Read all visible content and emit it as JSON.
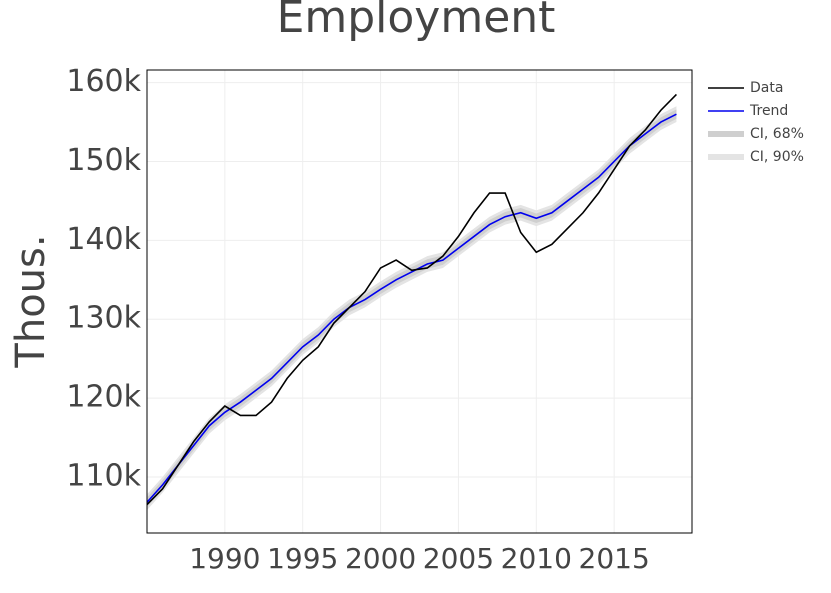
{
  "chart_data": {
    "type": "line",
    "title": "Employment",
    "y_label": "Thous.",
    "x": [
      1985,
      1986,
      1987,
      1988,
      1989,
      1990,
      1991,
      1992,
      1993,
      1994,
      1995,
      1996,
      1997,
      1998,
      1999,
      2000,
      2001,
      2002,
      2003,
      2004,
      2005,
      2006,
      2007,
      2008,
      2009,
      2010,
      2011,
      2012,
      2013,
      2014,
      2015,
      2016,
      2017,
      2018,
      2019
    ],
    "series": [
      {
        "name": "Data",
        "color": "#000000",
        "values": [
          106500,
          108500,
          111500,
          114500,
          117000,
          119000,
          117800,
          117800,
          119500,
          122500,
          124800,
          126500,
          129500,
          131500,
          133500,
          136500,
          137500,
          136200,
          136500,
          138000,
          140500,
          143500,
          146000,
          146000,
          141000,
          138500,
          139500,
          141500,
          143500,
          146000,
          149000,
          152000,
          154000,
          156500,
          158500
        ]
      },
      {
        "name": "Trend",
        "color": "#0000ee",
        "values": [
          106800,
          109000,
          111500,
          114000,
          116500,
          118200,
          119500,
          121000,
          122500,
          124500,
          126500,
          128000,
          130000,
          131500,
          132500,
          133800,
          135000,
          136000,
          137000,
          137500,
          139000,
          140500,
          142000,
          143000,
          143500,
          142800,
          143500,
          145000,
          146500,
          148000,
          150000,
          152000,
          153500,
          155000,
          156000
        ]
      },
      {
        "name": "CI, 68%",
        "color": "#cfcfcf",
        "lower": [
          106200,
          108400,
          110900,
          113400,
          115900,
          117600,
          118900,
          120400,
          121900,
          123900,
          125900,
          127400,
          129400,
          130900,
          131900,
          133200,
          134400,
          135400,
          136400,
          136900,
          138400,
          139900,
          141400,
          142400,
          142900,
          142200,
          142900,
          144400,
          145900,
          147400,
          149400,
          151400,
          152900,
          154400,
          155400
        ],
        "upper": [
          107400,
          109600,
          112100,
          114600,
          117100,
          118800,
          120100,
          121600,
          123100,
          125100,
          127100,
          128600,
          130600,
          132100,
          133100,
          134400,
          135600,
          136600,
          137600,
          138100,
          139600,
          141100,
          142600,
          143600,
          144100,
          143400,
          144100,
          145600,
          147100,
          148600,
          150600,
          152600,
          154100,
          155600,
          156600
        ]
      },
      {
        "name": "CI, 90%",
        "color": "#e4e4e4",
        "lower": [
          105800,
          108000,
          110500,
          113000,
          115500,
          117200,
          118500,
          120000,
          121500,
          123500,
          125500,
          127000,
          129000,
          130500,
          131500,
          132800,
          134000,
          135000,
          136000,
          136500,
          138000,
          139500,
          141000,
          142000,
          142500,
          141800,
          142500,
          144000,
          145500,
          147000,
          149000,
          151000,
          152500,
          154000,
          155000
        ],
        "upper": [
          107800,
          110000,
          112500,
          115000,
          117500,
          119200,
          120500,
          122000,
          123500,
          125500,
          127500,
          129000,
          131000,
          132500,
          133500,
          134800,
          136000,
          137000,
          138000,
          138500,
          140000,
          141500,
          143000,
          144000,
          144500,
          143800,
          144500,
          146000,
          147500,
          149000,
          151000,
          153000,
          154500,
          156000,
          157000
        ]
      }
    ],
    "xlim": [
      1985,
      2020
    ],
    "xticks": [
      1990,
      1995,
      2000,
      2005,
      2010,
      2015
    ],
    "ylim": [
      102900,
      161600
    ],
    "yticks": [
      {
        "value": 110000,
        "label": "110k"
      },
      {
        "value": 120000,
        "label": "120k"
      },
      {
        "value": 130000,
        "label": "130k"
      },
      {
        "value": 140000,
        "label": "140k"
      },
      {
        "value": 150000,
        "label": "150k"
      },
      {
        "value": 160000,
        "label": "160k"
      }
    ],
    "grid": true,
    "legend": "right"
  }
}
